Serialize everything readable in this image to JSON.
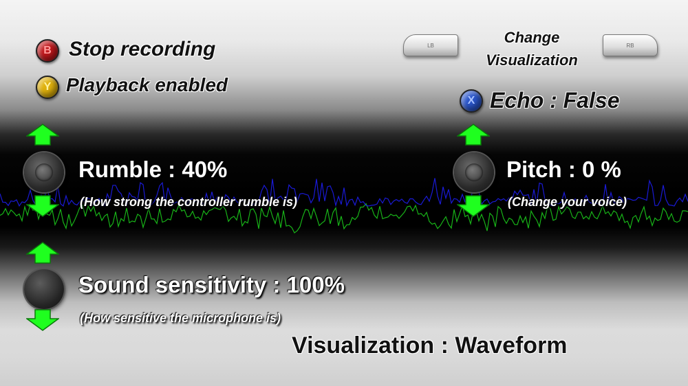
{
  "buttons": {
    "b": {
      "glyph": "B",
      "label": "Stop recording",
      "color": "#c0181c"
    },
    "y": {
      "glyph": "Y",
      "label": "Playback enabled",
      "color": "#e0b10c"
    },
    "x": {
      "glyph": "X",
      "label": "Echo : False",
      "color": "#2a55c9"
    }
  },
  "shoulders": {
    "lb": "LB",
    "rb": "RB",
    "change_line1": "Change",
    "change_line2": "Visualization"
  },
  "rumble": {
    "label": "Rumble : 40%",
    "hint": "(How strong the controller rumble is)",
    "value": 40
  },
  "pitch": {
    "label": "Pitch : 0 %",
    "hint": "(Change your voice)",
    "value": 0
  },
  "sensitivity": {
    "label": "Sound sensitivity : 100%",
    "hint": "(How sensitive the microphone is)",
    "value": 100
  },
  "visualization": {
    "label": "Visualization : Waveform"
  },
  "colors": {
    "arrow_fill": "#1fff1f",
    "wave_primary": "#1a1ad6",
    "wave_secondary": "#18b418"
  }
}
